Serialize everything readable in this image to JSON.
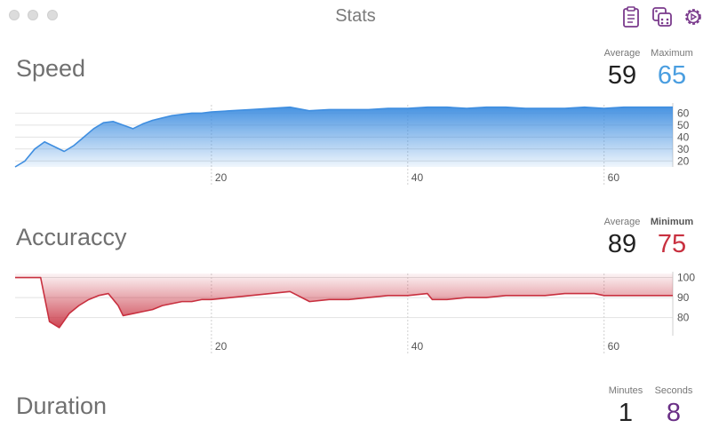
{
  "window": {
    "title": "Stats"
  },
  "toolbar": {
    "icons": [
      "clipboard-icon",
      "dice-icon",
      "gear-icon"
    ],
    "accent": "#7a3a8c"
  },
  "speed": {
    "title": "Speed",
    "avg_label": "Average",
    "avg_value": "59",
    "max_label": "Maximum",
    "max_value": "65",
    "color": "#4a90e2"
  },
  "accuracy": {
    "title": "Accuraccy",
    "avg_label": "Average",
    "avg_value": "89",
    "min_label": "Minimum",
    "min_value": "75",
    "color": "#c8303f"
  },
  "duration": {
    "title": "Duration",
    "min_label": "Minutes",
    "min_value": "1",
    "sec_label": "Seconds",
    "sec_value": "8",
    "value_color": "#6a2f86"
  },
  "chart_data": [
    {
      "type": "area",
      "title": "Speed",
      "xlim": [
        0,
        67
      ],
      "ylim": [
        15,
        67
      ],
      "xticks": [
        20,
        40,
        60
      ],
      "yticks": [
        20,
        30,
        40,
        50,
        60
      ],
      "x": [
        0,
        1,
        2,
        3,
        4,
        5,
        6,
        7,
        8,
        9,
        10,
        11,
        12,
        13,
        14,
        15,
        16,
        17,
        18,
        19,
        20,
        22,
        24,
        26,
        28,
        30,
        32,
        34,
        36,
        38,
        40,
        42,
        44,
        46,
        48,
        50,
        52,
        54,
        56,
        58,
        60,
        62,
        64,
        66,
        67
      ],
      "y": [
        15,
        20,
        30,
        36,
        32,
        28,
        33,
        40,
        47,
        52,
        53,
        50,
        47,
        51,
        54,
        56,
        58,
        59,
        60,
        60,
        61,
        62,
        63,
        64,
        65,
        62,
        63,
        63,
        63,
        64,
        64,
        65,
        65,
        64,
        65,
        65,
        64,
        64,
        64,
        65,
        64,
        65,
        65,
        65,
        65
      ]
    },
    {
      "type": "area",
      "title": "Accuraccy",
      "xlim": [
        0,
        67
      ],
      "ylim": [
        71,
        102
      ],
      "xticks": [
        20,
        40,
        60
      ],
      "yticks": [
        80,
        90,
        100
      ],
      "x": [
        0,
        2.6,
        3.5,
        4.5,
        5.5,
        6.5,
        7.5,
        8.5,
        9.5,
        10.5,
        11,
        12,
        13,
        14,
        15,
        16,
        17,
        18,
        19,
        20,
        22,
        24,
        26,
        28,
        30,
        32,
        34,
        36,
        38,
        40,
        42,
        42.5,
        44,
        46,
        48,
        50,
        52,
        54,
        56,
        58,
        59,
        60,
        62,
        64,
        66,
        67
      ],
      "y": [
        100,
        100,
        78,
        75,
        82,
        86,
        89,
        91,
        92,
        86,
        81,
        82,
        83,
        84,
        86,
        87,
        88,
        88,
        89,
        89,
        90,
        91,
        92,
        93,
        88,
        89,
        89,
        90,
        91,
        91,
        92,
        89,
        89,
        90,
        90,
        91,
        91,
        91,
        92,
        92,
        92,
        91,
        91,
        91,
        91,
        91
      ]
    }
  ]
}
